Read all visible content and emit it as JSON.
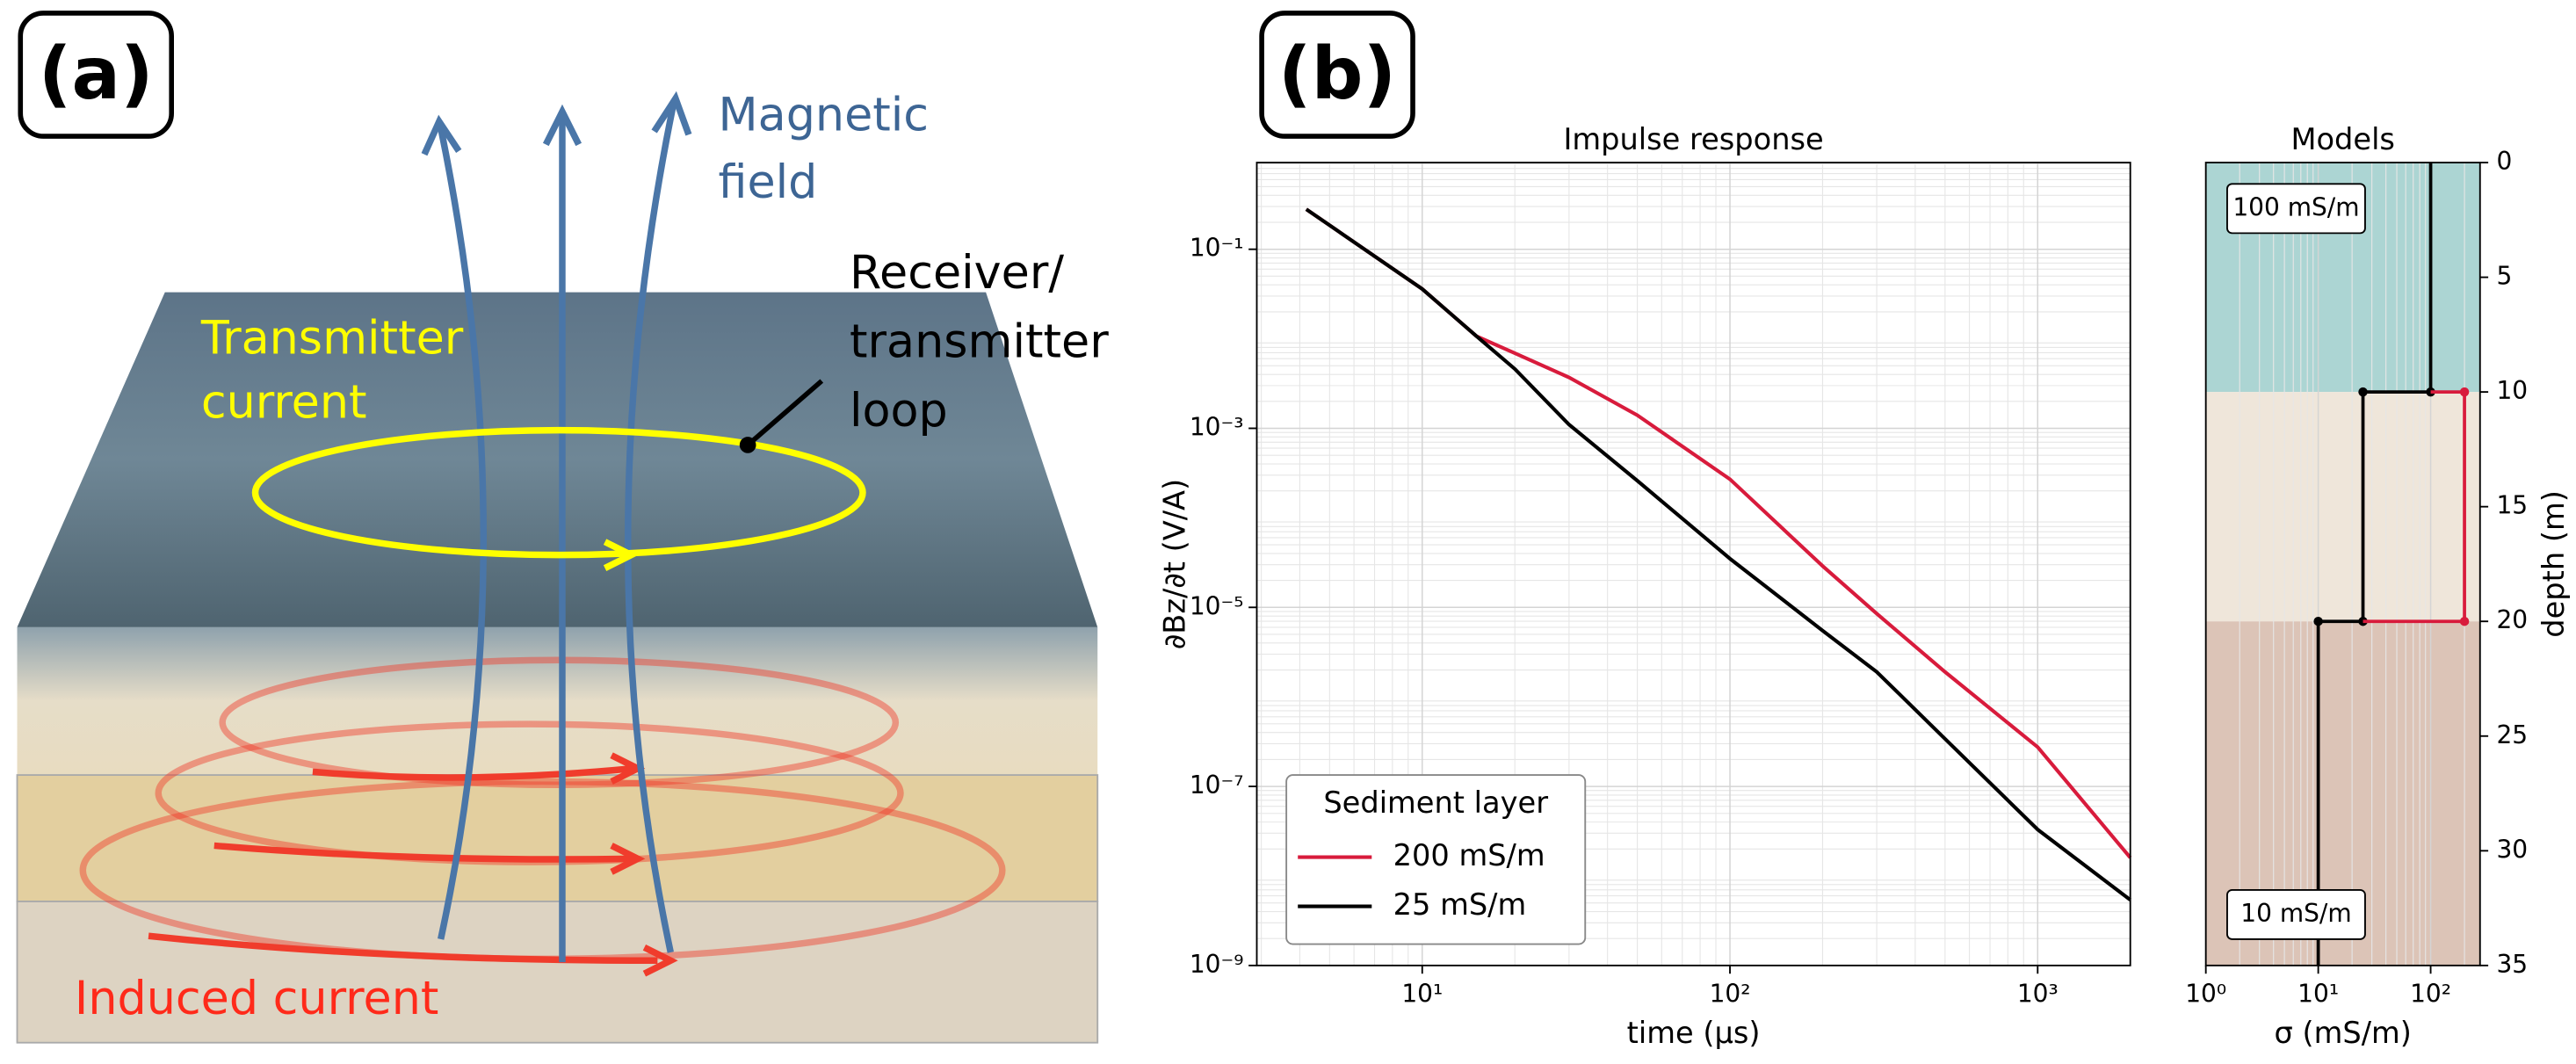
{
  "figure_labels": [
    "(a)",
    "(b)"
  ],
  "panel_a": {
    "magnetic_field": [
      "Magnetic",
      "field"
    ],
    "receiver_loop": [
      "Receiver/",
      "transmitter",
      "loop"
    ],
    "transmitter_current": [
      "Transmitter",
      "current"
    ],
    "induced_current": "Induced current"
  },
  "chart_data": [
    {
      "type": "line",
      "title": "Impulse response",
      "x_label": "time (µs)",
      "y_label": "∂Bz/∂t (V/A)",
      "x_scale": "log",
      "y_scale": "log",
      "grid": true,
      "legend_position": "lower left",
      "legend_title": "Sediment layer",
      "x": [
        4.2,
        10,
        15,
        20,
        30,
        50,
        100,
        200,
        300,
        500,
        1000,
        2000
      ],
      "series": [
        {
          "name": "200 mS/m",
          "color": "#d81b3c",
          "values": [
            0.28,
            0.036,
            0.0107,
            0.0069,
            0.0037,
            0.0014,
            0.00027,
            2.9e-05,
            8.5e-06,
            1.9e-06,
            2.75e-07,
            1.6e-08
          ]
        },
        {
          "name": "25 mS/m",
          "color": "#000000",
          "values": [
            0.28,
            0.036,
            0.0107,
            0.0046,
            0.0011,
            0.00026,
            3.5e-05,
            5.5e-06,
            1.9e-06,
            3.4e-07,
            3.3e-08,
            5.4e-09
          ]
        }
      ],
      "xlim": [
        2.9,
        2000
      ],
      "ylim": [
        1e-09,
        0.93
      ],
      "xticks": [
        {
          "value": 10,
          "label": "10¹"
        },
        {
          "value": 100,
          "label": "10²"
        },
        {
          "value": 1000,
          "label": "10³"
        }
      ],
      "yticks": [
        {
          "value": 1e-09,
          "label": "10⁻⁹"
        },
        {
          "value": 1e-07,
          "label": "10⁻⁷"
        },
        {
          "value": 1e-05,
          "label": "10⁻⁵"
        },
        {
          "value": 0.001,
          "label": "10⁻³"
        },
        {
          "value": 0.1,
          "label": "10⁻¹"
        }
      ]
    },
    {
      "type": "step",
      "title": "Models",
      "x_label": "σ (mS/m)",
      "y_label": "depth (m)",
      "x_scale": "log",
      "grid": true,
      "y_axis_side": "right",
      "layers": [
        {
          "top": 0,
          "bottom": 10,
          "color": "#acd5d3",
          "label": "100 mS/m"
        },
        {
          "top": 10,
          "bottom": 20,
          "color": "#efe6da"
        },
        {
          "top": 20,
          "bottom": 35,
          "color": "#dcc4b7",
          "label": "10 mS/m"
        }
      ],
      "series": [
        {
          "color": "#000000",
          "x": [
            100,
            100,
            25,
            25,
            10,
            10
          ],
          "y": [
            0,
            10,
            10,
            20,
            20,
            35
          ]
        },
        {
          "color": "#d81b3c",
          "x": [
            100,
            200,
            200,
            25
          ],
          "y": [
            10,
            10,
            20,
            20
          ]
        }
      ],
      "xlim": [
        1,
        275
      ],
      "ylim": [
        35,
        0
      ],
      "xticks": [
        {
          "value": 1,
          "label": "10⁰"
        },
        {
          "value": 10,
          "label": "10¹"
        },
        {
          "value": 100,
          "label": "10²"
        }
      ],
      "yticks": [
        0,
        5,
        10,
        15,
        20,
        25,
        30,
        35
      ]
    }
  ]
}
